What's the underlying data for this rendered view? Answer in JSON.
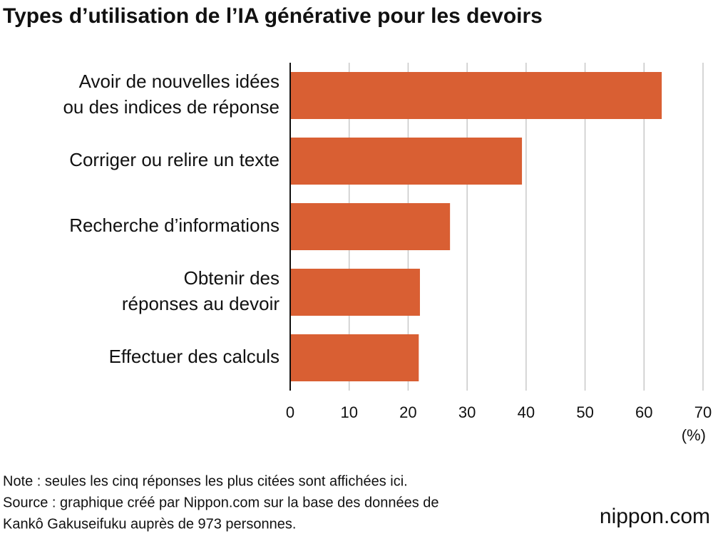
{
  "chart_data": {
    "type": "bar",
    "orientation": "horizontal",
    "title": "Types d’utilisation de l’IA générative pour les devoirs",
    "categories": [
      [
        "Avoir de nouvelles idées",
        "ou des indices de réponse"
      ],
      [
        "Corriger ou relire un texte"
      ],
      [
        "Recherche d’informations"
      ],
      [
        "Obtenir des",
        "réponses au devoir"
      ],
      [
        "Effectuer des calculs"
      ]
    ],
    "values": [
      63,
      39.3,
      27.1,
      22,
      21.8
    ],
    "color": "#d95f33",
    "xlim": [
      0,
      70
    ],
    "xticks": [
      0,
      10,
      20,
      30,
      40,
      50,
      60,
      70
    ],
    "x_unit": "(%)",
    "grid": true,
    "notes": [
      "Note : seules les cinq réponses les plus citées sont affichées ici.",
      "Source : graphique créé par Nippon.com sur la base des données de",
      "Kankô Gakuseifuku auprès de 973 personnes."
    ],
    "logo": "nippon.com"
  }
}
